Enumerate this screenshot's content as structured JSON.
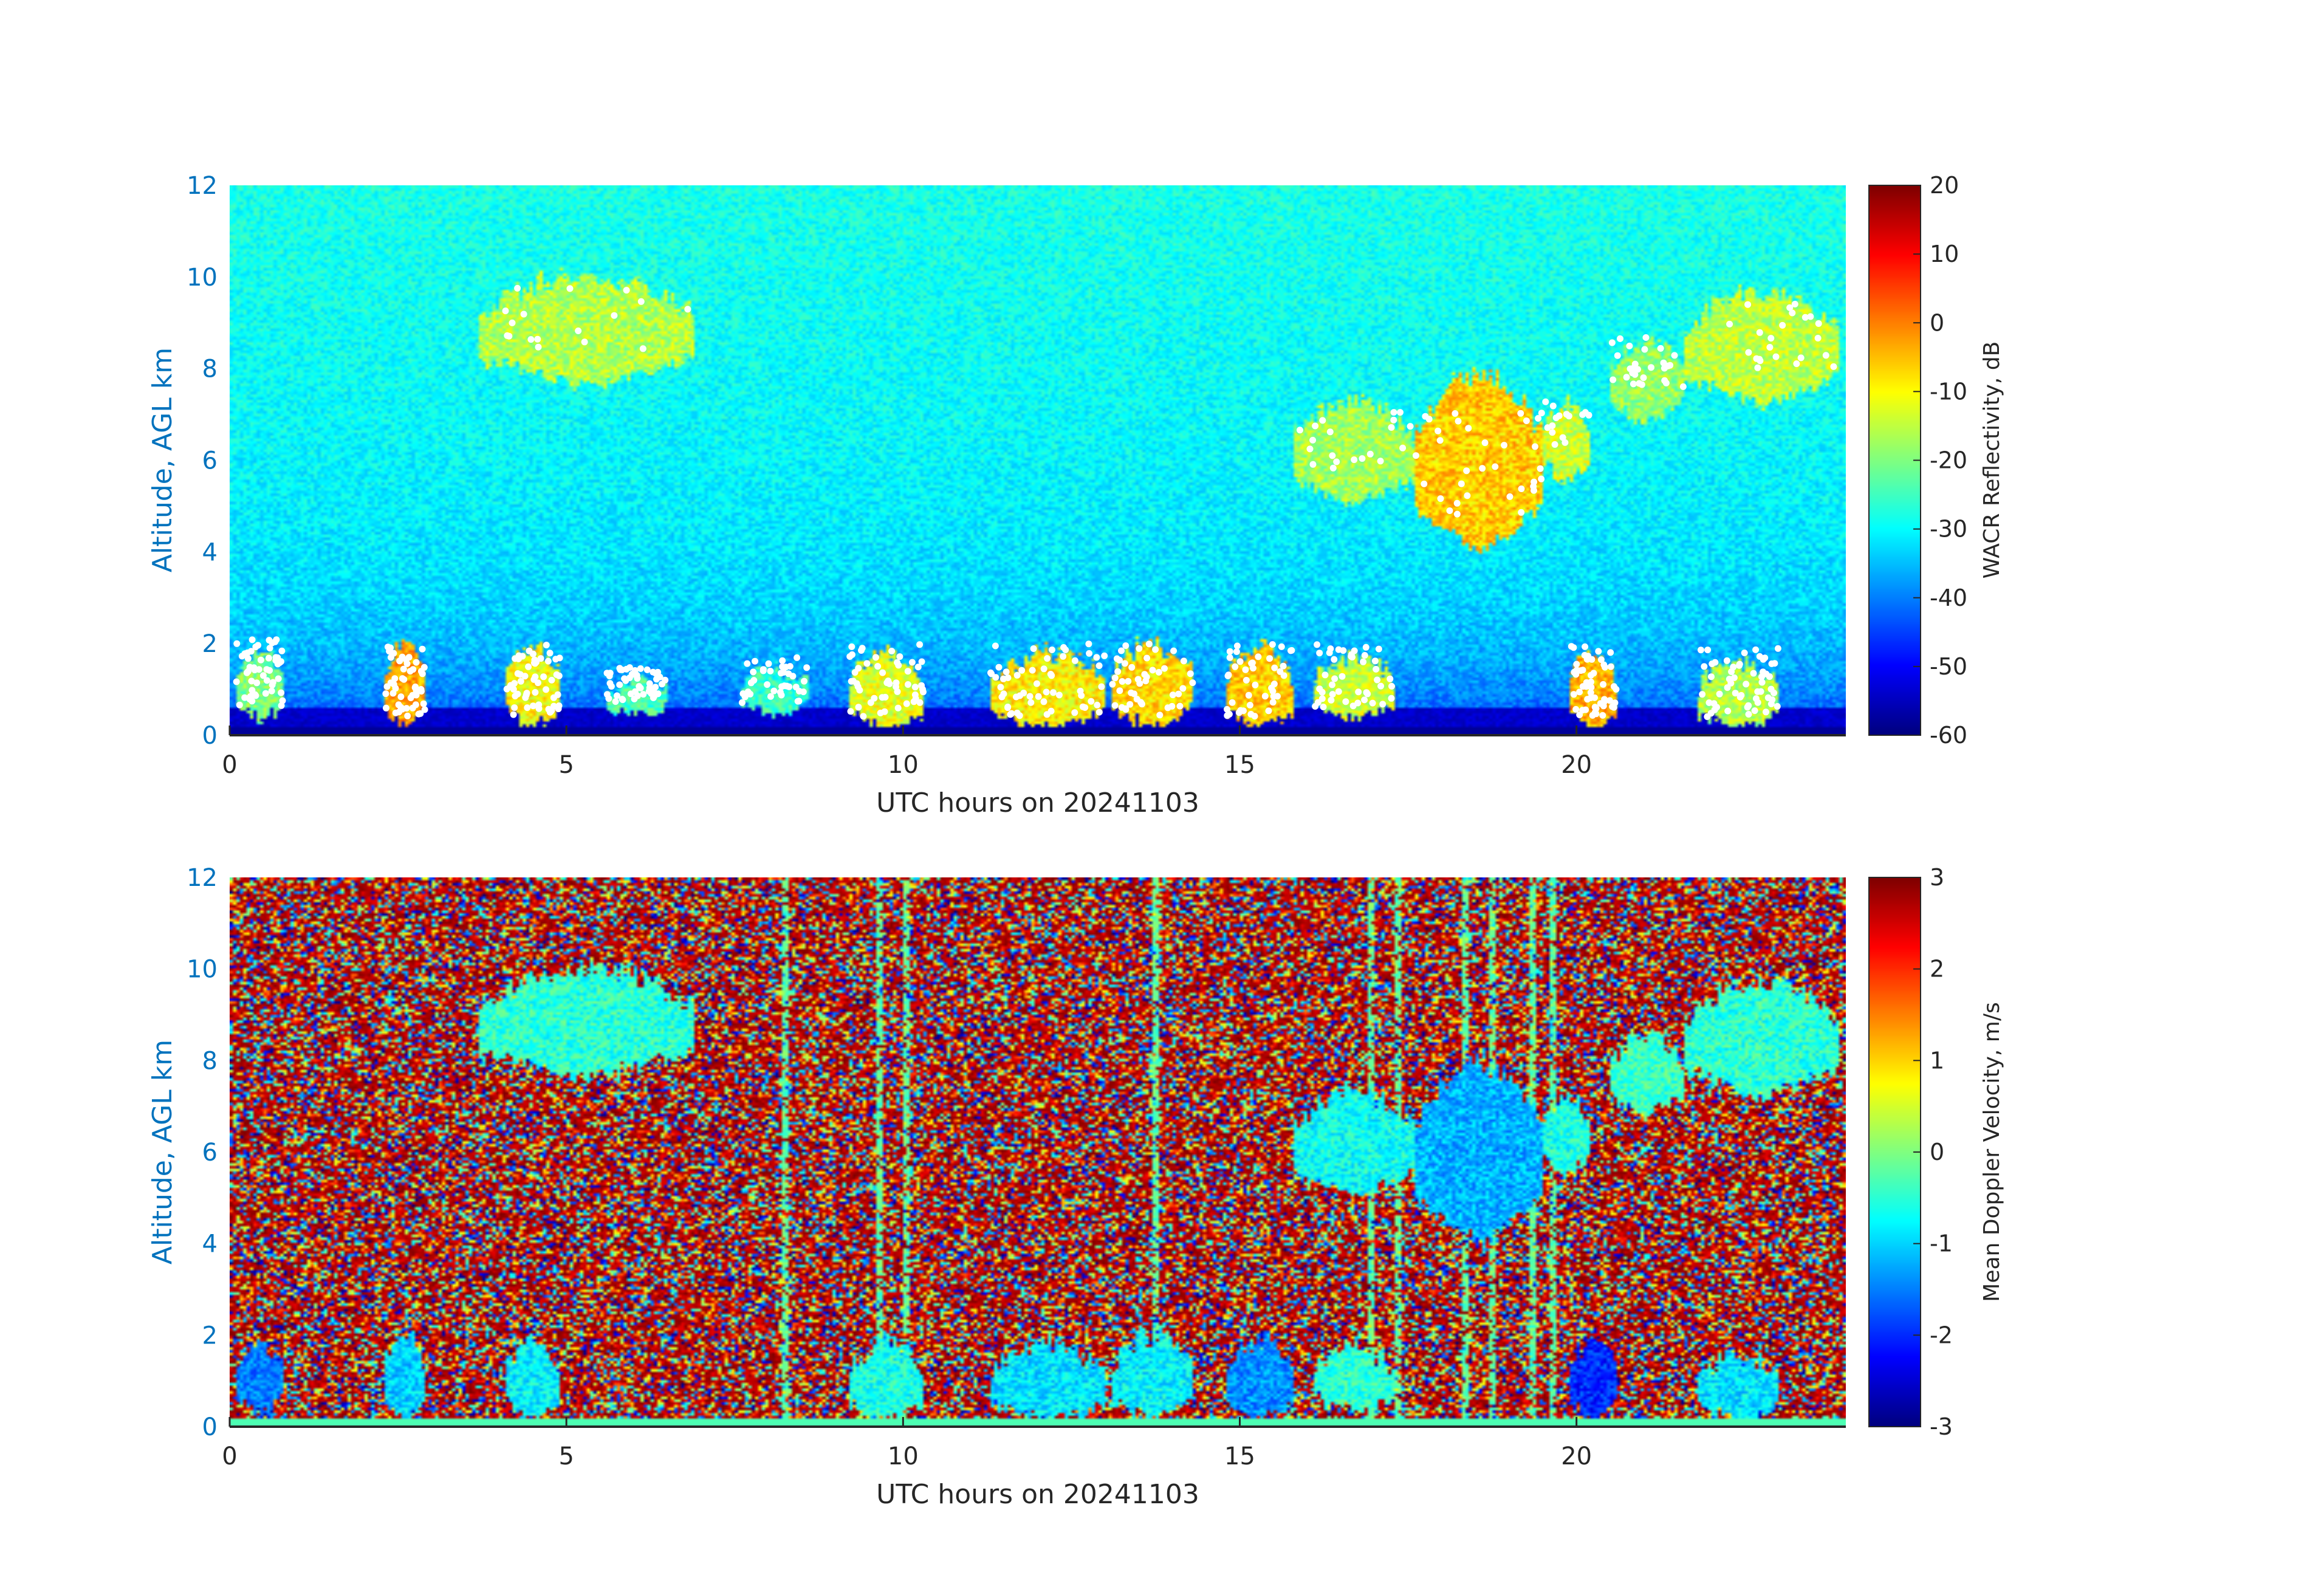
{
  "colormap": "jet",
  "colors": {
    "axis_label": "#0072BD",
    "tick_text": "#262626",
    "axis_line": "#262626",
    "cloud_mask_dots": "#ffffff"
  },
  "chart_data": [
    {
      "type": "heatmap",
      "title": "",
      "xlabel": "UTC hours on 20241103",
      "ylabel": "Altitude, AGL km",
      "xlim": [
        0,
        24
      ],
      "ylim": [
        0,
        12
      ],
      "x_ticks": [
        0,
        5,
        10,
        15,
        20
      ],
      "y_ticks": [
        0,
        2,
        4,
        6,
        8,
        10,
        12
      ],
      "colorbar": {
        "label": "WACR Reflectivity, dB",
        "range": [
          -60,
          20
        ],
        "ticks": [
          20,
          10,
          0,
          -10,
          -20,
          -30,
          -40,
          -50,
          -60
        ]
      },
      "background_value": -32,
      "noise_amplitude": 4,
      "near_surface_value": -58,
      "cloud_regions": [
        {
          "x0": 3.7,
          "x1": 6.9,
          "y0": 7.6,
          "y1": 10.0,
          "value": -16
        },
        {
          "x0": 15.8,
          "x1": 17.6,
          "y0": 5.0,
          "y1": 7.3,
          "value": -17
        },
        {
          "x0": 17.6,
          "x1": 19.5,
          "y0": 4.0,
          "y1": 7.9,
          "value": -6
        },
        {
          "x0": 19.5,
          "x1": 20.2,
          "y0": 5.5,
          "y1": 7.2,
          "value": -14
        },
        {
          "x0": 20.5,
          "x1": 21.6,
          "y0": 6.8,
          "y1": 8.6,
          "value": -18
        },
        {
          "x0": 21.6,
          "x1": 23.9,
          "y0": 7.2,
          "y1": 9.7,
          "value": -15
        },
        {
          "x0": 0.1,
          "x1": 0.8,
          "y0": 0.3,
          "y1": 1.8,
          "value": -20
        },
        {
          "x0": 2.3,
          "x1": 2.9,
          "y0": 0.1,
          "y1": 2.0,
          "value": -3
        },
        {
          "x0": 4.1,
          "x1": 4.9,
          "y0": 0.1,
          "y1": 1.9,
          "value": -10
        },
        {
          "x0": 5.6,
          "x1": 6.5,
          "y0": 0.4,
          "y1": 1.2,
          "value": -24
        },
        {
          "x0": 7.6,
          "x1": 8.6,
          "y0": 0.4,
          "y1": 1.4,
          "value": -26
        },
        {
          "x0": 9.2,
          "x1": 10.3,
          "y0": 0.1,
          "y1": 1.8,
          "value": -12
        },
        {
          "x0": 11.3,
          "x1": 13.0,
          "y0": 0.1,
          "y1": 1.8,
          "value": -9
        },
        {
          "x0": 13.1,
          "x1": 14.3,
          "y0": 0.1,
          "y1": 2.0,
          "value": -7
        },
        {
          "x0": 14.8,
          "x1": 15.8,
          "y0": 0.1,
          "y1": 1.9,
          "value": -6
        },
        {
          "x0": 16.1,
          "x1": 17.3,
          "y0": 0.3,
          "y1": 1.7,
          "value": -14
        },
        {
          "x0": 19.9,
          "x1": 20.6,
          "y0": 0.1,
          "y1": 1.9,
          "value": -4
        },
        {
          "x0": 21.8,
          "x1": 23.0,
          "y0": 0.1,
          "y1": 1.6,
          "value": -16
        }
      ]
    },
    {
      "type": "heatmap",
      "title": "",
      "xlabel": "UTC hours on 20241103",
      "ylabel": "Altitude, AGL km",
      "xlim": [
        0,
        24
      ],
      "ylim": [
        0,
        12
      ],
      "x_ticks": [
        0,
        5,
        10,
        15,
        20
      ],
      "y_ticks": [
        0,
        2,
        4,
        6,
        8,
        10,
        12
      ],
      "colorbar": {
        "label": "Mean Doppler Velocity, m/s",
        "range": [
          -3,
          3
        ],
        "ticks": [
          3,
          2,
          1,
          0,
          -1,
          -2,
          -3
        ]
      },
      "background": "random noise over full range",
      "vertical_streaks_x": [
        8.2,
        9.6,
        10.0,
        13.7,
        16.9,
        17.3,
        18.3,
        18.7,
        19.3,
        19.6
      ],
      "cloud_regions": [
        {
          "x0": 3.7,
          "x1": 6.9,
          "y0": 7.6,
          "y1": 10.0,
          "value": -0.5
        },
        {
          "x0": 15.8,
          "x1": 17.6,
          "y0": 5.0,
          "y1": 7.3,
          "value": -0.7
        },
        {
          "x0": 17.6,
          "x1": 19.5,
          "y0": 4.0,
          "y1": 7.9,
          "value": -1.2
        },
        {
          "x0": 19.5,
          "x1": 20.2,
          "y0": 5.5,
          "y1": 7.2,
          "value": -0.6
        },
        {
          "x0": 20.5,
          "x1": 21.6,
          "y0": 6.8,
          "y1": 8.6,
          "value": -0.4
        },
        {
          "x0": 21.6,
          "x1": 23.9,
          "y0": 7.2,
          "y1": 9.7,
          "value": -0.5
        },
        {
          "x0": 0.1,
          "x1": 0.8,
          "y0": 0.3,
          "y1": 1.8,
          "value": -1.5
        },
        {
          "x0": 2.3,
          "x1": 2.9,
          "y0": 0.1,
          "y1": 2.0,
          "value": -1.0
        },
        {
          "x0": 4.1,
          "x1": 4.9,
          "y0": 0.1,
          "y1": 1.9,
          "value": -0.8
        },
        {
          "x0": 9.2,
          "x1": 10.3,
          "y0": 0.1,
          "y1": 1.8,
          "value": -0.6
        },
        {
          "x0": 11.3,
          "x1": 13.0,
          "y0": 0.1,
          "y1": 1.8,
          "value": -0.9
        },
        {
          "x0": 13.1,
          "x1": 14.3,
          "y0": 0.1,
          "y1": 2.0,
          "value": -0.8
        },
        {
          "x0": 14.8,
          "x1": 15.8,
          "y0": 0.1,
          "y1": 1.9,
          "value": -1.4
        },
        {
          "x0": 16.1,
          "x1": 17.3,
          "y0": 0.3,
          "y1": 1.7,
          "value": -0.5
        },
        {
          "x0": 19.9,
          "x1": 20.6,
          "y0": 0.1,
          "y1": 1.9,
          "value": -2.0
        },
        {
          "x0": 21.8,
          "x1": 23.0,
          "y0": 0.1,
          "y1": 1.6,
          "value": -0.9
        }
      ]
    }
  ]
}
